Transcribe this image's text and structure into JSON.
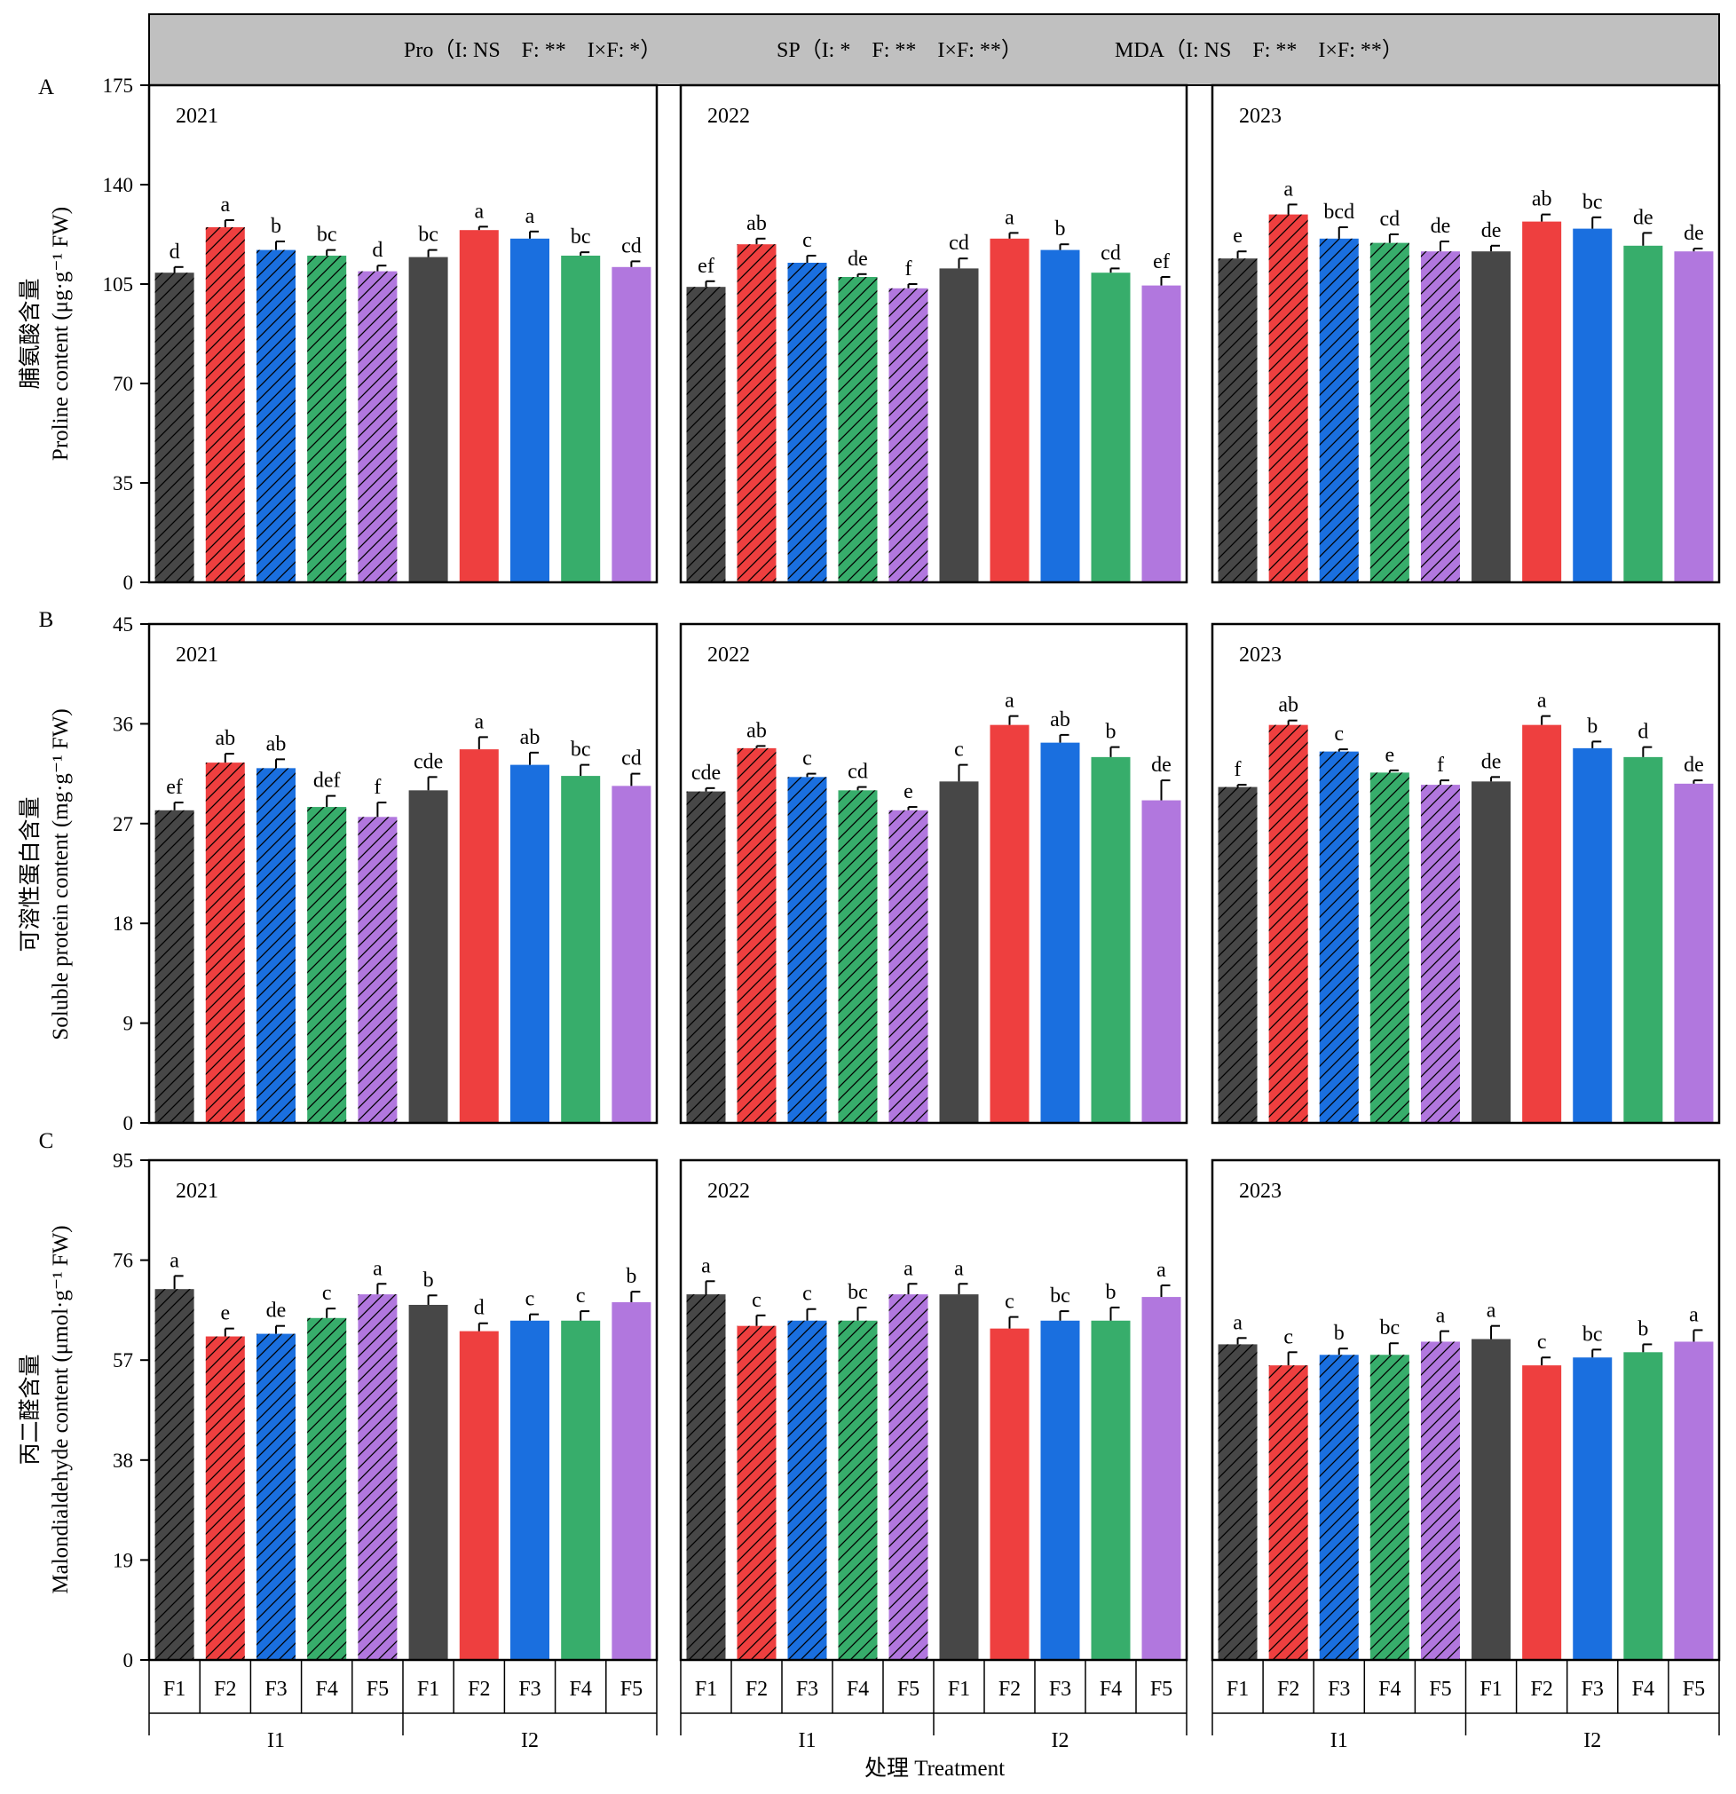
{
  "header": {
    "stats": [
      "Pro（I: NS    F: **    I×F: *）",
      "SP（I: *    F: **    I×F: **）",
      "MDA（I: NS    F: **    I×F: **）"
    ]
  },
  "xaxis": {
    "title": "处理 Treatment",
    "treatments": [
      "F1",
      "F2",
      "F3",
      "F4",
      "F5"
    ],
    "irrigation": [
      "I1",
      "I2"
    ]
  },
  "years": [
    "2021",
    "2022",
    "2023"
  ],
  "legend_colors": {
    "F1": "#474747",
    "F2": "#ee3f3f",
    "F3": "#1a6fdf",
    "F4": "#37ad6b",
    "F5": "#b177de"
  },
  "pattern": {
    "I1": "hatched",
    "I2": "solid"
  },
  "chart_data": [
    {
      "type": "bar",
      "panel_label": "A",
      "ylabel_cn": "脯氨酸含量",
      "ylabel_en": "Proline content (μg·g⁻¹ FW)",
      "ylim": [
        0,
        175
      ],
      "yticks": [
        0,
        35,
        70,
        105,
        140,
        175
      ],
      "categories": [
        "I1-F1",
        "I1-F2",
        "I1-F3",
        "I1-F4",
        "I1-F5",
        "I2-F1",
        "I2-F2",
        "I2-F3",
        "I2-F4",
        "I2-F5"
      ],
      "panels": [
        {
          "year": "2021",
          "values": [
            109,
            125,
            117,
            115,
            109.5,
            114.5,
            124,
            121,
            115,
            111
          ],
          "errors": [
            2,
            2.5,
            3,
            2,
            2,
            2.5,
            1.2,
            2.5,
            1.2,
            2
          ],
          "letters": [
            "d",
            "a",
            "b",
            "bc",
            "d",
            "bc",
            "a",
            "a",
            "bc",
            "cd"
          ]
        },
        {
          "year": "2022",
          "values": [
            104,
            119,
            112.5,
            107.5,
            103.5,
            110.5,
            121,
            117,
            109,
            104.5
          ],
          "errors": [
            2,
            2,
            2.5,
            1,
            1.5,
            3.5,
            2,
            2,
            1.5,
            3
          ],
          "letters": [
            "ef",
            "ab",
            "c",
            "de",
            "f",
            "cd",
            "a",
            "b",
            "cd",
            "ef"
          ]
        },
        {
          "year": "2023",
          "values": [
            114,
            129.5,
            121,
            119.5,
            116.5,
            116.5,
            127,
            124.5,
            118.5,
            116.5
          ],
          "errors": [
            2.5,
            3.5,
            4,
            3,
            3.5,
            2,
            2.5,
            4,
            4.5,
            1
          ],
          "letters": [
            "e",
            "a",
            "bcd",
            "cd",
            "de",
            "de",
            "ab",
            "bc",
            "de",
            "de"
          ]
        }
      ]
    },
    {
      "type": "bar",
      "panel_label": "B",
      "ylabel_cn": "可溶性蛋白含量",
      "ylabel_en": "Soluble protein content (mg·g⁻¹ FW)",
      "ylim": [
        0,
        45
      ],
      "yticks": [
        0,
        9,
        18,
        27,
        36,
        45
      ],
      "categories": [
        "I1-F1",
        "I1-F2",
        "I1-F3",
        "I1-F4",
        "I1-F5",
        "I2-F1",
        "I2-F2",
        "I2-F3",
        "I2-F4",
        "I2-F5"
      ],
      "panels": [
        {
          "year": "2021",
          "values": [
            28.2,
            32.5,
            32,
            28.5,
            27.6,
            30,
            33.7,
            32.3,
            31.3,
            30.4
          ],
          "errors": [
            0.7,
            0.8,
            0.8,
            1,
            1.3,
            1.2,
            1.1,
            1.1,
            1,
            1.1
          ],
          "letters": [
            "ef",
            "ab",
            "ab",
            "def",
            "f",
            "cde",
            "a",
            "ab",
            "bc",
            "cd"
          ]
        },
        {
          "year": "2022",
          "values": [
            29.9,
            33.8,
            31.2,
            30,
            28.2,
            30.8,
            35.9,
            34.3,
            33,
            29.1
          ],
          "errors": [
            0.3,
            0.2,
            0.3,
            0.3,
            0.3,
            1.5,
            0.8,
            0.7,
            0.9,
            1.8
          ],
          "letters": [
            "cde",
            "ab",
            "c",
            "cd",
            "e",
            "c",
            "a",
            "ab",
            "b",
            "de"
          ]
        },
        {
          "year": "2023",
          "values": [
            30.3,
            35.9,
            33.5,
            31.6,
            30.5,
            30.8,
            35.9,
            33.8,
            33,
            30.6
          ],
          "errors": [
            0.2,
            0.4,
            0.2,
            0.2,
            0.4,
            0.4,
            0.8,
            0.6,
            0.9,
            0.3
          ],
          "letters": [
            "f",
            "ab",
            "c",
            "e",
            "f",
            "de",
            "a",
            "b",
            "d",
            "de"
          ]
        }
      ]
    },
    {
      "type": "bar",
      "panel_label": "C",
      "ylabel_cn": "丙二醛含量",
      "ylabel_en": "Malondialdehyde content (μmol·g⁻¹ FW)",
      "ylim": [
        0,
        95
      ],
      "yticks": [
        0,
        19,
        38,
        57,
        76,
        95
      ],
      "categories": [
        "I1-F1",
        "I1-F2",
        "I1-F3",
        "I1-F4",
        "I1-F5",
        "I2-F1",
        "I2-F2",
        "I2-F3",
        "I2-F4",
        "I2-F5"
      ],
      "panels": [
        {
          "year": "2021",
          "values": [
            70.5,
            61.5,
            62,
            65,
            69.5,
            67.5,
            62.5,
            64.5,
            64.5,
            68
          ],
          "errors": [
            2.5,
            1.5,
            1.5,
            1.8,
            2,
            1.8,
            1.5,
            1.2,
            1.8,
            2
          ],
          "letters": [
            "a",
            "e",
            "de",
            "c",
            "a",
            "b",
            "d",
            "c",
            "c",
            "b"
          ]
        },
        {
          "year": "2022",
          "values": [
            69.5,
            63.5,
            64.5,
            64.5,
            69.5,
            69.5,
            63,
            64.5,
            64.5,
            69
          ],
          "errors": [
            2.5,
            2,
            2.2,
            2.5,
            2,
            2,
            2.2,
            1.8,
            2.5,
            2.2
          ],
          "letters": [
            "a",
            "c",
            "c",
            "bc",
            "a",
            "a",
            "c",
            "bc",
            "b",
            "a"
          ]
        },
        {
          "year": "2023",
          "values": [
            60,
            56,
            58,
            58,
            60.5,
            61,
            56,
            57.5,
            58.5,
            60.5
          ],
          "errors": [
            1.2,
            2.5,
            1.2,
            2.2,
            2,
            2.5,
            1.5,
            1.5,
            1.5,
            2.2
          ],
          "letters": [
            "a",
            "c",
            "b",
            "bc",
            "a",
            "a",
            "c",
            "bc",
            "b",
            "a"
          ]
        }
      ]
    }
  ]
}
